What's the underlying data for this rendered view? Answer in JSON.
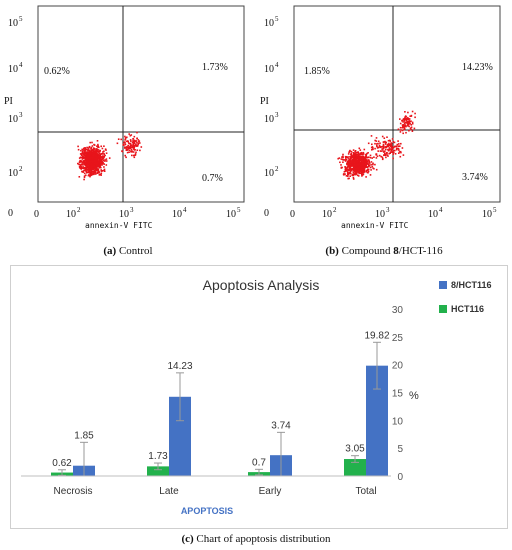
{
  "flow_panels": [
    {
      "caption_letter": "(a)",
      "caption_text": "Control",
      "caption_bold": "",
      "caption_suffix": "",
      "quadrants": {
        "ul": "0.62%",
        "ur": "1.73%",
        "lr": "0.7%"
      },
      "y_label": "PI",
      "x_label": "annexin-V FITC",
      "x_ticks": [
        {
          "base": "0",
          "exp": ""
        },
        {
          "base": "10",
          "exp": "2"
        },
        {
          "base": "10",
          "exp": "3"
        },
        {
          "base": "10",
          "exp": "4"
        },
        {
          "base": "10",
          "exp": "5"
        }
      ],
      "y_ticks": [
        {
          "base": "10",
          "exp": "5"
        },
        {
          "base": "10",
          "exp": "4"
        },
        {
          "base": "10",
          "exp": "3"
        },
        {
          "base": "10",
          "exp": "2"
        },
        {
          "base": "0",
          "exp": ""
        }
      ],
      "dot_color": "#e8141b"
    },
    {
      "caption_letter": "(b)",
      "caption_text": "Compound ",
      "caption_bold": "8",
      "caption_suffix": "/HCT-116",
      "quadrants": {
        "ul": "1.85%",
        "ur": "14.23%",
        "lr": "3.74%"
      },
      "y_label": "PI",
      "x_label": "annexin-V FITC",
      "x_ticks": [
        {
          "base": "0",
          "exp": ""
        },
        {
          "base": "10",
          "exp": "2"
        },
        {
          "base": "10",
          "exp": "3"
        },
        {
          "base": "10",
          "exp": "4"
        },
        {
          "base": "10",
          "exp": "5"
        }
      ],
      "y_ticks": [
        {
          "base": "10",
          "exp": "5"
        },
        {
          "base": "10",
          "exp": "4"
        },
        {
          "base": "10",
          "exp": "3"
        },
        {
          "base": "10",
          "exp": "2"
        },
        {
          "base": "0",
          "exp": ""
        }
      ],
      "dot_color": "#e8141b"
    }
  ],
  "chart_data": {
    "type": "bar",
    "title": "Apoptosis Analysis",
    "xlabel": "APOPTOSIS",
    "ylabel": "%",
    "categories": [
      "Necrosis",
      "Late",
      "Early",
      "Total"
    ],
    "series": [
      {
        "name": "8/HCT116",
        "color": "#4472c4",
        "values": [
          1.85,
          14.23,
          3.74,
          19.82
        ],
        "errors": [
          4.2,
          4.3,
          4.1,
          4.2
        ]
      },
      {
        "name": "HCT116",
        "color": "#22b14c",
        "values": [
          0.62,
          1.73,
          0.7,
          3.05
        ],
        "errors": [
          0.5,
          0.6,
          0.5,
          0.6
        ]
      }
    ],
    "ylim": [
      0,
      30
    ],
    "yticks": [
      0,
      5,
      10,
      15,
      20,
      25,
      30
    ],
    "y_axis_side": "right",
    "grid": false,
    "legend": "top-right",
    "data_labels": true
  },
  "bar_caption": {
    "letter": "(c)",
    "text": "Chart of apoptosis distribution"
  }
}
